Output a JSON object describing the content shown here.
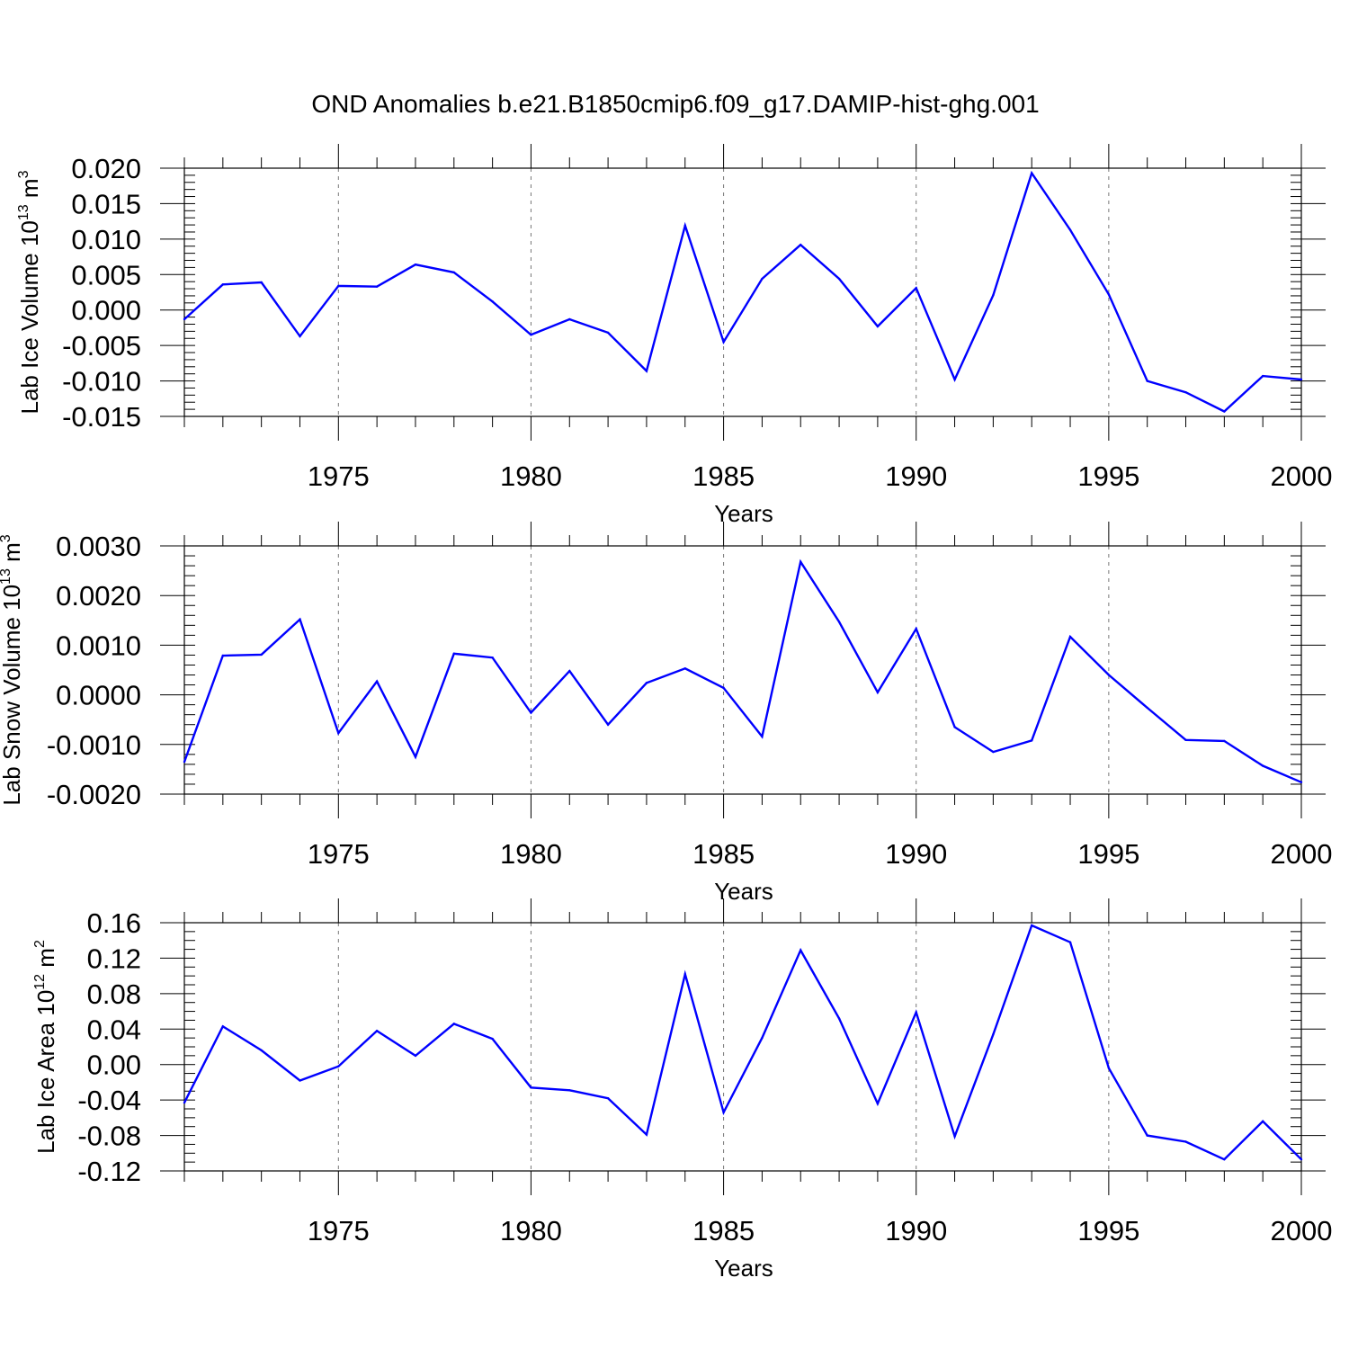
{
  "figure": {
    "title": "OND Anomalies b.e21.B1850cmip6.f09_g17.DAMIP-hist-ghg.001"
  },
  "colors": {
    "series": "#0000ff"
  },
  "chart_data": [
    {
      "type": "line",
      "title": "OND Anomalies b.e21.B1850cmip6.f09_g17.DAMIP-hist-ghg.001",
      "xlabel": "Years",
      "ylabel": {
        "main": "Lab Ice Volume 10",
        "sup": "13",
        "unit": " m",
        "unit_sup": "3"
      },
      "xlim": [
        1971,
        2000
      ],
      "ylim": [
        -0.015,
        0.02
      ],
      "yticks": [
        -0.015,
        -0.01,
        -0.005,
        0.0,
        0.005,
        0.01,
        0.015,
        0.02
      ],
      "ytick_labels": [
        "-0.015",
        "-0.010",
        "-0.005",
        "0.000",
        "0.005",
        "0.010",
        "0.015",
        "0.020"
      ],
      "yminor": 0.001,
      "xticks": [
        1975,
        1980,
        1985,
        1990,
        1995,
        2000
      ],
      "xtick_labels": [
        "1975",
        "1980",
        "1985",
        "1990",
        "1995",
        "2000"
      ],
      "grid": "x-dashed",
      "x": [
        1971,
        1972,
        1973,
        1974,
        1975,
        1976,
        1977,
        1978,
        1979,
        1980,
        1981,
        1982,
        1983,
        1984,
        1985,
        1986,
        1987,
        1988,
        1989,
        1990,
        1991,
        1992,
        1993,
        1994,
        1995,
        1996,
        1997,
        1998,
        1999,
        2000
      ],
      "series": [
        {
          "values": [
            -0.0013,
            0.0036,
            0.0039,
            -0.0037,
            0.0034,
            0.0033,
            0.0064,
            0.0053,
            0.0012,
            -0.0035,
            -0.0013,
            -0.0032,
            -0.0086,
            0.0119,
            -0.0045,
            0.0044,
            0.0092,
            0.0044,
            -0.0023,
            0.0031,
            -0.0098,
            0.0021,
            0.0193,
            0.0113,
            0.0022,
            -0.01,
            -0.0116,
            -0.0143,
            -0.0093,
            -0.0098
          ]
        }
      ]
    },
    {
      "type": "line",
      "xlabel": "Years",
      "ylabel": {
        "main": "Lab Snow Volume 10",
        "sup": "13",
        "unit": " m",
        "unit_sup": "3"
      },
      "xlim": [
        1971,
        2000
      ],
      "ylim": [
        -0.002,
        0.003
      ],
      "yticks": [
        -0.002,
        -0.001,
        0.0,
        0.001,
        0.002,
        0.003
      ],
      "ytick_labels": [
        "-0.0020",
        "-0.0010",
        "0.0000",
        "0.0010",
        "0.0020",
        "0.0030"
      ],
      "yminor": 0.0002,
      "xticks": [
        1975,
        1980,
        1985,
        1990,
        1995,
        2000
      ],
      "xtick_labels": [
        "1975",
        "1980",
        "1985",
        "1990",
        "1995",
        "2000"
      ],
      "grid": "x-dashed",
      "x": [
        1971,
        1972,
        1973,
        1974,
        1975,
        1976,
        1977,
        1978,
        1979,
        1980,
        1981,
        1982,
        1983,
        1984,
        1985,
        1986,
        1987,
        1988,
        1989,
        1990,
        1991,
        1992,
        1993,
        1994,
        1995,
        1996,
        1997,
        1998,
        1999,
        2000
      ],
      "series": [
        {
          "values": [
            -0.00135,
            0.00079,
            0.00081,
            0.00152,
            -0.00077,
            0.00027,
            -0.00125,
            0.00083,
            0.00075,
            -0.00036,
            0.00048,
            -0.0006,
            0.00024,
            0.00053,
            0.00014,
            -0.00084,
            0.00268,
            0.00147,
            5e-05,
            0.00133,
            -0.00065,
            -0.00115,
            -0.00092,
            0.00117,
            0.0004,
            -0.00026,
            -0.00091,
            -0.00093,
            -0.00143,
            -0.00176
          ]
        }
      ]
    },
    {
      "type": "line",
      "xlabel": "Years",
      "ylabel": {
        "main": "Lab Ice Area 10",
        "sup": "12",
        "unit": " m",
        "unit_sup": "2"
      },
      "xlim": [
        1971,
        2000
      ],
      "ylim": [
        -0.12,
        0.16
      ],
      "yticks": [
        -0.12,
        -0.08,
        -0.04,
        0.0,
        0.04,
        0.08,
        0.12,
        0.16
      ],
      "ytick_labels": [
        "-0.12",
        "-0.08",
        "-0.04",
        "0.00",
        "0.04",
        "0.08",
        "0.12",
        "0.16"
      ],
      "yminor": 0.01,
      "xticks": [
        1975,
        1980,
        1985,
        1990,
        1995,
        2000
      ],
      "xtick_labels": [
        "1975",
        "1980",
        "1985",
        "1990",
        "1995",
        "2000"
      ],
      "grid": "x-dashed",
      "x": [
        1971,
        1972,
        1973,
        1974,
        1975,
        1976,
        1977,
        1978,
        1979,
        1980,
        1981,
        1982,
        1983,
        1984,
        1985,
        1986,
        1987,
        1988,
        1989,
        1990,
        1991,
        1992,
        1993,
        1994,
        1995,
        1996,
        1997,
        1998,
        1999,
        2000
      ],
      "series": [
        {
          "values": [
            -0.043,
            0.043,
            0.016,
            -0.018,
            -0.002,
            0.038,
            0.01,
            0.046,
            0.029,
            -0.026,
            -0.029,
            -0.038,
            -0.079,
            0.102,
            -0.054,
            0.03,
            0.129,
            0.052,
            -0.044,
            0.059,
            -0.081,
            0.034,
            0.157,
            0.138,
            -0.004,
            -0.08,
            -0.087,
            -0.107,
            -0.064,
            -0.107
          ]
        }
      ]
    }
  ]
}
